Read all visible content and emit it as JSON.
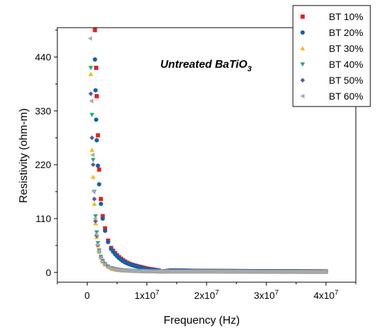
{
  "chart_data": {
    "type": "scatter",
    "title": "",
    "annotation": {
      "main": "Untreated BaTiO",
      "subscript": "3"
    },
    "xlabel": "Frequency (Hz)",
    "ylabel": "Resistivity (ohm-m)",
    "xlim": [
      -5000000,
      45000000
    ],
    "ylim": [
      -20,
      500
    ],
    "x_ticks": [
      {
        "value": 0,
        "label": "0",
        "sup": ""
      },
      {
        "value": 10000000,
        "label": "1x10",
        "sup": "7"
      },
      {
        "value": 20000000,
        "label": "2x10",
        "sup": "7"
      },
      {
        "value": 30000000,
        "label": "3x10",
        "sup": "7"
      },
      {
        "value": 40000000,
        "label": "4x10",
        "sup": "7"
      }
    ],
    "y_ticks": [
      {
        "value": 0,
        "label": "0"
      },
      {
        "value": 110,
        "label": "110"
      },
      {
        "value": 220,
        "label": "220"
      },
      {
        "value": 330,
        "label": "330"
      },
      {
        "value": 440,
        "label": "440"
      }
    ],
    "legend_position": "top-right",
    "grid": false,
    "series": [
      {
        "name": "BT 10%",
        "color": "#e8201c",
        "marker": "square",
        "x": [
          1300000,
          1500000,
          1600000,
          1800000,
          2000000,
          2300000,
          2600000,
          3000000,
          3500000,
          4000000,
          5000000,
          6000000,
          7000000,
          8000000,
          9000000,
          10000000,
          11000000,
          12000000,
          12500000,
          14000000,
          20000000,
          30000000,
          40000000
        ],
        "y": [
          495,
          418,
          360,
          280,
          210,
          150,
          115,
          90,
          65,
          50,
          35,
          25,
          18,
          14,
          11,
          8,
          6,
          4,
          2,
          4,
          3,
          2.5,
          2
        ]
      },
      {
        "name": "BT 20%",
        "color": "#1560a8",
        "marker": "circle",
        "x": [
          1300000,
          1400000,
          1500000,
          1600000,
          1800000,
          2000000,
          2300000,
          2600000,
          3000000,
          3500000,
          4000000,
          5000000,
          6000000,
          7000000,
          8000000,
          9000000,
          10000000,
          11000000,
          12000000,
          12500000,
          14000000,
          20000000,
          30000000,
          40000000
        ],
        "y": [
          435,
          372,
          312,
          270,
          218,
          180,
          140,
          110,
          85,
          62,
          48,
          33,
          23,
          17,
          13,
          10,
          7,
          5,
          4,
          2,
          4,
          3,
          2.5,
          2
        ]
      },
      {
        "name": "BT 30%",
        "color": "#f2b90f",
        "marker": "triangle-up",
        "x": [
          600000,
          800000,
          1000000,
          1200000,
          1400000,
          1600000,
          1800000,
          2000000,
          2300000,
          2600000,
          3000000,
          3500000,
          4000000,
          5000000,
          6000000,
          8000000,
          10000000,
          12000000,
          20000000,
          30000000,
          40000000
        ],
        "y": [
          405,
          250,
          195,
          140,
          100,
          72,
          55,
          42,
          30,
          22,
          16,
          11,
          8,
          5,
          4,
          3,
          2.5,
          2,
          2,
          1.5,
          1.2
        ]
      },
      {
        "name": "BT 40%",
        "color": "#1dab76",
        "marker": "triangle-down",
        "x": [
          600000,
          800000,
          1000000,
          1200000,
          1400000,
          1600000,
          1800000,
          2000000,
          2300000,
          2600000,
          3000000,
          3500000,
          4000000,
          5000000,
          6000000,
          8000000,
          10000000,
          12000000,
          20000000,
          30000000,
          40000000
        ],
        "y": [
          418,
          322,
          230,
          165,
          115,
          82,
          60,
          45,
          32,
          24,
          17,
          12,
          9,
          6,
          4.5,
          3,
          2.5,
          2,
          2,
          1.5,
          1.2
        ]
      },
      {
        "name": "BT 50%",
        "color": "#5c5a9e",
        "marker": "diamond",
        "x": [
          600000,
          800000,
          1000000,
          1200000,
          1400000,
          1600000,
          1800000,
          2000000,
          2300000,
          2600000,
          3000000,
          3500000,
          4000000,
          5000000,
          6000000,
          8000000,
          10000000,
          12000000,
          20000000,
          30000000,
          40000000
        ],
        "y": [
          365,
          275,
          220,
          150,
          105,
          75,
          56,
          43,
          31,
          23,
          17,
          12,
          9,
          6,
          4.5,
          3,
          2.5,
          2,
          2,
          1.5,
          1.2
        ]
      },
      {
        "name": "BT 60%",
        "color": "#a9a9a9",
        "marker": "triangle-left",
        "x": [
          500000,
          700000,
          900000,
          1100000,
          1300000,
          1500000,
          1700000,
          1900000,
          2200000,
          2500000,
          2900000,
          3400000,
          4000000,
          5000000,
          6000000,
          8000000,
          10000000,
          12000000,
          20000000,
          30000000,
          40000000
        ],
        "y": [
          478,
          350,
          240,
          165,
          110,
          78,
          57,
          43,
          30,
          22,
          16,
          11,
          8,
          5,
          4,
          3,
          2.5,
          2,
          2,
          1.5,
          1.2
        ]
      }
    ]
  }
}
